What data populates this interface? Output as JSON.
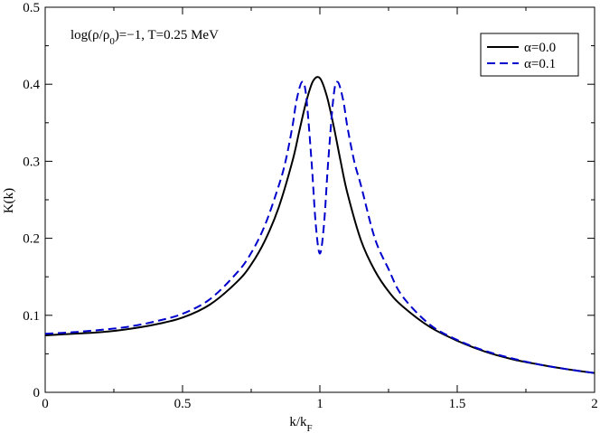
{
  "chart_data": {
    "type": "line",
    "annotation": {
      "main": "log(ρ/ρ",
      "sub": "0",
      "tail": ")=−1, T=0.25 MeV"
    },
    "xlabel": {
      "main": "k/k",
      "sub": "F"
    },
    "ylabel": "K(k)",
    "xlim": [
      0,
      2
    ],
    "ylim": [
      0,
      0.5
    ],
    "x_ticks": [
      0,
      0.5,
      1,
      1.5,
      2
    ],
    "x_tick_labels": [
      "0",
      "0.5",
      "1",
      "1.5",
      "2"
    ],
    "y_ticks": [
      0,
      0.1,
      0.2,
      0.3,
      0.4,
      0.5
    ],
    "y_tick_labels": [
      "0",
      "0.1",
      "0.2",
      "0.3",
      "0.4",
      "0.5"
    ],
    "grid": false,
    "legend_position": "top-right",
    "series": [
      {
        "name": "α=0.0",
        "color": "#000000",
        "style": "solid",
        "x": [
          0,
          0.1,
          0.2,
          0.3,
          0.4,
          0.5,
          0.6,
          0.7,
          0.75,
          0.8,
          0.85,
          0.9,
          0.925,
          0.95,
          0.975,
          1.0,
          1.025,
          1.05,
          1.075,
          1.1,
          1.15,
          1.2,
          1.25,
          1.3,
          1.4,
          1.5,
          1.6,
          1.7,
          1.8,
          1.9,
          2.0
        ],
        "y": [
          0.074,
          0.076,
          0.078,
          0.082,
          0.088,
          0.097,
          0.114,
          0.144,
          0.166,
          0.197,
          0.24,
          0.3,
          0.339,
          0.377,
          0.404,
          0.408,
          0.385,
          0.346,
          0.301,
          0.259,
          0.197,
          0.158,
          0.131,
          0.112,
          0.085,
          0.067,
          0.053,
          0.043,
          0.036,
          0.03,
          0.025
        ]
      },
      {
        "name": "α=0.1",
        "color": "#0000cc",
        "style": "dashed",
        "x": [
          0,
          0.1,
          0.2,
          0.3,
          0.4,
          0.5,
          0.6,
          0.7,
          0.75,
          0.8,
          0.85,
          0.875,
          0.9,
          0.915,
          0.935,
          0.95,
          0.97,
          0.985,
          1.0,
          1.015,
          1.03,
          1.05,
          1.065,
          1.085,
          1.1,
          1.125,
          1.15,
          1.2,
          1.25,
          1.3,
          1.4,
          1.5,
          1.6,
          1.7,
          1.8,
          1.9,
          2.0
        ],
        "y": [
          0.076,
          0.078,
          0.081,
          0.085,
          0.092,
          0.102,
          0.121,
          0.156,
          0.181,
          0.217,
          0.268,
          0.3,
          0.345,
          0.379,
          0.403,
          0.385,
          0.298,
          0.218,
          0.18,
          0.218,
          0.298,
          0.385,
          0.403,
          0.379,
          0.345,
          0.3,
          0.268,
          0.2,
          0.16,
          0.125,
          0.088,
          0.068,
          0.054,
          0.044,
          0.036,
          0.03,
          0.025
        ]
      }
    ]
  }
}
